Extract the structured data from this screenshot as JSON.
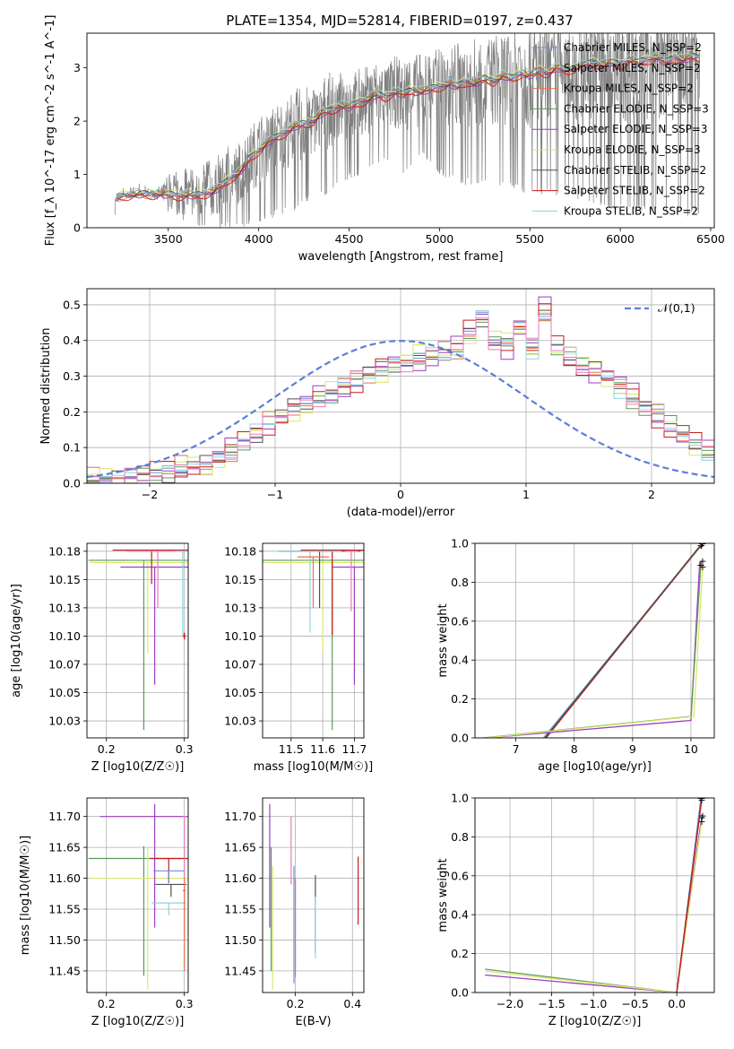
{
  "figure_title": "PLATE=1354, MJD=52814, FIBERID=0197, z=0.437",
  "chart_data": [
    {
      "id": "spectrum",
      "type": "line",
      "title": "PLATE=1354, MJD=52814, FIBERID=0197, z=0.437",
      "xlabel": "wavelength [Angstrom, rest frame]",
      "ylabel": "Flux [f_λ 10^-17 erg cm^-2 s^-1 A^-1]",
      "xlim": [
        3050,
        6520
      ],
      "ylim": [
        0,
        3.65
      ],
      "xticks": [
        3500,
        4000,
        4500,
        5000,
        5500,
        6000,
        6500
      ],
      "yticks": [
        0,
        1,
        2,
        3
      ],
      "data_envelope": {
        "wavelength": [
          3200,
          3250,
          3300,
          3350,
          3400,
          3500,
          3600,
          3700,
          3800,
          3900,
          4000,
          4100,
          4200,
          4300,
          4400,
          4500,
          4600,
          4700,
          4800,
          4900,
          5000,
          5100,
          5200,
          5300,
          5400,
          5500,
          5600,
          5700,
          5800,
          5900,
          6000,
          6100,
          6200,
          6300,
          6400
        ],
        "upper": [
          0.6,
          0.75,
          0.8,
          0.82,
          0.8,
          1.0,
          1.15,
          1.3,
          1.45,
          1.7,
          1.95,
          2.15,
          2.35,
          2.5,
          2.65,
          2.75,
          2.85,
          3.05,
          3.05,
          3.3,
          3.1,
          3.3,
          3.3,
          3.3,
          3.4,
          3.5,
          3.45,
          3.55,
          3.5,
          3.6,
          3.6,
          3.6,
          3.55,
          3.6,
          3.6
        ],
        "lower": [
          0.5,
          0.6,
          0.65,
          0.7,
          0.65,
          0.3,
          0.1,
          0.0,
          0.0,
          0.0,
          0.1,
          0.2,
          0.3,
          0.5,
          0.6,
          0.9,
          1.0,
          1.2,
          1.0,
          1.3,
          1.0,
          0.8,
          0.8,
          0.8,
          0.7,
          0.6,
          0.6,
          0.6,
          0.5,
          0.4,
          0.3,
          0.3,
          0.3,
          0.2,
          0.2
        ]
      },
      "model": {
        "wavelength": [
          3200,
          3210,
          3250,
          3300,
          3350,
          3400,
          3450,
          3500,
          3550,
          3600,
          3650,
          3700,
          3750,
          3800,
          3850,
          3900,
          3950,
          4000,
          4050,
          4100,
          4150,
          4200,
          4250,
          4300,
          4350,
          4400,
          4450,
          4500,
          4550,
          4600,
          4650,
          4700,
          4750,
          4800,
          4850,
          4900,
          4950,
          5000,
          5050,
          5100,
          5150,
          5200,
          5250,
          5300,
          5350,
          5400,
          5450,
          5500,
          5550,
          5600,
          5650,
          5700,
          5750,
          5800,
          5850,
          5900,
          5950,
          6000,
          6050,
          6100,
          6150,
          6200,
          6250,
          6300,
          6350,
          6400
        ],
        "flux": [
          0.0,
          0.55,
          0.6,
          0.62,
          0.63,
          0.62,
          0.64,
          0.62,
          0.6,
          0.62,
          0.6,
          0.64,
          0.68,
          0.8,
          0.95,
          1.05,
          1.3,
          1.45,
          1.6,
          1.7,
          1.8,
          1.9,
          1.95,
          2.0,
          2.15,
          2.2,
          2.3,
          2.25,
          2.35,
          2.4,
          2.5,
          2.45,
          2.55,
          2.5,
          2.6,
          2.55,
          2.6,
          2.65,
          2.7,
          2.65,
          2.75,
          2.7,
          2.8,
          2.75,
          2.85,
          2.8,
          2.9,
          2.85,
          2.95,
          2.9,
          3.0,
          2.95,
          3.0,
          3.05,
          3.1,
          3.05,
          3.1,
          3.05,
          3.15,
          3.1,
          3.15,
          3.2,
          3.1,
          3.2,
          3.15,
          3.2
        ]
      },
      "legend_position": "upper right",
      "series": [
        {
          "name": "Chabrier MILES, N_SSP=2",
          "color": "#6a8fd6",
          "offset": 0.0
        },
        {
          "name": "Salpeter MILES, N_SSP=2",
          "color": "#e8734a",
          "offset": 0.03
        },
        {
          "name": "Kroupa MILES, N_SSP=2",
          "color": "#e8734a",
          "offset": -0.03
        },
        {
          "name": "Chabrier ELODIE, N_SSP=3",
          "color": "#5b9a5b",
          "offset": 0.01
        },
        {
          "name": "Salpeter ELODIE, N_SSP=3",
          "color": "#9b3fbf",
          "offset": -0.02
        },
        {
          "name": "Kroupa ELODIE, N_SSP=3",
          "color": "#d9e86a",
          "offset": 0.05
        },
        {
          "name": "Chabrier STELIB, N_SSP=2",
          "color": "#505050",
          "offset": 0.02
        },
        {
          "name": "Salpeter STELIB, N_SSP=2",
          "color": "#c81a1a",
          "offset": -0.05
        },
        {
          "name": "Kroupa STELIB, N_SSP=2",
          "color": "#8ed4dc",
          "offset": 0.06
        }
      ]
    },
    {
      "id": "residuals",
      "type": "histogram",
      "xlabel": "(data-model)/error",
      "ylabel": "Normed distribution",
      "xlim": [
        -2.5,
        2.5
      ],
      "ylim": [
        0,
        0.545
      ],
      "xticks": [
        -2,
        -1,
        0,
        1,
        2
      ],
      "yticks": [
        0.0,
        0.1,
        0.2,
        0.3,
        0.4,
        0.5
      ],
      "grid": true,
      "bin_width": 0.1,
      "bin_start": -2.5,
      "reference_curve": {
        "name": "𝒩(0,1)",
        "color": "#5b7fd6",
        "style": "dashed"
      },
      "legend_position": "upper right",
      "histogram": [
        0.01,
        0.01,
        0.01,
        0.02,
        0.02,
        0.03,
        0.03,
        0.04,
        0.05,
        0.05,
        0.07,
        0.09,
        0.12,
        0.14,
        0.17,
        0.19,
        0.21,
        0.22,
        0.24,
        0.25,
        0.27,
        0.29,
        0.31,
        0.32,
        0.33,
        0.34,
        0.35,
        0.36,
        0.37,
        0.38,
        0.42,
        0.46,
        0.4,
        0.39,
        0.44,
        0.38,
        0.48,
        0.38,
        0.35,
        0.33,
        0.32,
        0.3,
        0.27,
        0.24,
        0.21,
        0.19,
        0.16,
        0.14,
        0.11,
        0.09
      ],
      "series": [
        {
          "color": "#6a8fd6",
          "shift": 0.0
        },
        {
          "color": "#e8734a",
          "shift": 0.02
        },
        {
          "color": "#5b9a5b",
          "shift": -0.015
        },
        {
          "color": "#9b3fbf",
          "shift": 0.025
        },
        {
          "color": "#d9e86a",
          "shift": -0.02
        },
        {
          "color": "#505050",
          "shift": 0.01
        },
        {
          "color": "#c81a1a",
          "shift": -0.025
        },
        {
          "color": "#8ed4dc",
          "shift": 0.015
        },
        {
          "color": "#e87ab8",
          "shift": -0.01
        }
      ]
    },
    {
      "id": "z_vs_age",
      "type": "scatter",
      "xlabel": "Z [log10(Z/Z☉)]",
      "ylabel": "age  [log10(age/yr)]",
      "xlim": [
        0.175,
        0.305
      ],
      "ylim": [
        10.01,
        10.182
      ],
      "xticks": [
        0.2,
        0.3
      ],
      "yticks": [
        10.025,
        10.05,
        10.075,
        10.1,
        10.125,
        10.15,
        10.175
      ],
      "grid": true,
      "points": [
        {
          "x": 0.248,
          "y": 10.167,
          "xerr": 0.071,
          "yerr": [
            0.15,
            0
          ],
          "color": "#5b9a5b"
        },
        {
          "x": 0.253,
          "y": 10.165,
          "xerr": 0.074,
          "yerr": [
            0.08,
            0
          ],
          "color": "#d9e86a"
        },
        {
          "x": 0.262,
          "y": 10.161,
          "xerr": 0.044,
          "yerr": [
            0.104,
            0
          ],
          "color": "#9b3fbf"
        },
        {
          "x": 0.258,
          "y": 10.176,
          "xerr": 0.05,
          "yerr": [
            0.03,
            0
          ],
          "color": "#c81a1a"
        },
        {
          "x": 0.266,
          "y": 10.175,
          "xerr": 0.04,
          "yerr": [
            0.05,
            0
          ],
          "color": "#e87ab8"
        },
        {
          "x": 0.298,
          "y": 10.175,
          "xerr": 0.01,
          "yerr": [
            0.075,
            0
          ],
          "color": "#8ed4dc"
        },
        {
          "x": 0.3,
          "y": 10.1,
          "xerr": 0.002,
          "yerr": [
            0.003,
            0.003
          ],
          "color": "#e8734a"
        },
        {
          "x": 0.3,
          "y": 10.1,
          "xerr": 0.002,
          "yerr": [
            0.003,
            0.003
          ],
          "color": "#c81a1a"
        }
      ]
    },
    {
      "id": "mass_vs_age",
      "type": "scatter",
      "xlabel": "mass [log10(M/M☉)]",
      "ylabel": "",
      "xlim": [
        11.41,
        11.73
      ],
      "ylim": [
        10.01,
        10.182
      ],
      "xticks": [
        11.5,
        11.6,
        11.7
      ],
      "yticks": [
        10.025,
        10.05,
        10.075,
        10.1,
        10.125,
        10.15,
        10.175
      ],
      "grid": true,
      "points": [
        {
          "x": 11.63,
          "y": 10.167,
          "xerr": 0.23,
          "yerr": [
            0.15,
            0
          ],
          "color": "#5b9a5b"
        },
        {
          "x": 11.6,
          "y": 10.165,
          "xerr": 0.19,
          "yerr": [
            0.08,
            0
          ],
          "color": "#d9e86a"
        },
        {
          "x": 11.7,
          "y": 10.161,
          "xerr": 0.07,
          "yerr": [
            0.104,
            0
          ],
          "color": "#9b3fbf"
        },
        {
          "x": 11.63,
          "y": 10.176,
          "xerr": 0.1,
          "yerr": [
            0.075,
            0
          ],
          "color": "#c81a1a"
        },
        {
          "x": 11.59,
          "y": 10.175,
          "xerr": 0.13,
          "yerr": [
            0.05,
            0
          ],
          "color": "#505050"
        },
        {
          "x": 11.56,
          "y": 10.175,
          "xerr": 0.1,
          "yerr": [
            0.072,
            0
          ],
          "color": "#8ed4dc"
        },
        {
          "x": 11.69,
          "y": 10.175,
          "xerr": 0.02,
          "yerr": [
            0.053,
            0
          ],
          "color": "#e87ab8"
        },
        {
          "x": 11.57,
          "y": 10.17,
          "xerr": 0.05,
          "yerr": [
            0.045,
            0
          ],
          "color": "#e8734a"
        }
      ]
    },
    {
      "id": "age_cumulative",
      "type": "line",
      "xlabel": "age  [log10(age/yr)]",
      "ylabel": "mass weight",
      "xlim": [
        6.3,
        10.4
      ],
      "ylim": [
        0,
        1.0
      ],
      "xticks": [
        7,
        8,
        9,
        10
      ],
      "yticks": [
        0.0,
        0.2,
        0.4,
        0.6,
        0.8,
        1.0
      ],
      "grid": true,
      "series": [
        {
          "color": "#8ed4dc",
          "x": [
            7.47,
            10.2
          ],
          "y": [
            0.0,
            1.0
          ]
        },
        {
          "color": "#6a8fd6",
          "x": [
            7.48,
            10.2
          ],
          "y": [
            0.0,
            1.0
          ]
        },
        {
          "color": "#5b9a5b",
          "x": [
            7.5,
            10.18
          ],
          "y": [
            0.0,
            0.99
          ]
        },
        {
          "color": "#c81a1a",
          "x": [
            7.52,
            10.17
          ],
          "y": [
            0.0,
            0.99
          ]
        },
        {
          "color": "#505050",
          "x": [
            7.5,
            10.19
          ],
          "y": [
            0.0,
            1.0
          ]
        },
        {
          "color": "#9b3fbf",
          "x": [
            6.5,
            10.0,
            10.15,
            10.2
          ],
          "y": [
            0.0,
            0.09,
            0.9,
            0.91
          ]
        },
        {
          "color": "#5b9a5b",
          "x": [
            6.45,
            10.0,
            10.17
          ],
          "y": [
            0.0,
            0.11,
            0.89
          ]
        },
        {
          "color": "#d9e86a",
          "x": [
            6.5,
            10.05,
            10.2
          ],
          "y": [
            0.0,
            0.11,
            0.88
          ]
        },
        {
          "color": "#e8734a",
          "x": [
            10.15,
            10.17
          ],
          "y": [
            0.87,
            0.89
          ]
        }
      ]
    },
    {
      "id": "z_vs_mass",
      "type": "scatter",
      "xlabel": "Z [log10(Z/Z☉)]",
      "ylabel": "mass [log10(M/M☉)]",
      "xlim": [
        0.175,
        0.305
      ],
      "ylim": [
        11.415,
        11.73
      ],
      "xticks": [
        0.2,
        0.3
      ],
      "yticks": [
        11.45,
        11.5,
        11.55,
        11.6,
        11.65,
        11.7
      ],
      "grid": true,
      "points": [
        {
          "x": 0.248,
          "y": 11.632,
          "xerr": 0.071,
          "yerr": [
            0.19,
            0.02
          ],
          "color": "#5b9a5b"
        },
        {
          "x": 0.253,
          "y": 11.6,
          "xerr": 0.074,
          "yerr": [
            0.18,
            0.05
          ],
          "color": "#d9e86a"
        },
        {
          "x": 0.262,
          "y": 11.7,
          "xerr": 0.07,
          "yerr": [
            0.18,
            0.02
          ],
          "color": "#9b3fbf"
        },
        {
          "x": 0.28,
          "y": 11.632,
          "xerr": 0.024,
          "yerr": [
            0.04,
            0
          ],
          "color": "#c81a1a"
        },
        {
          "x": 0.28,
          "y": 11.612,
          "xerr": 0.02,
          "yerr": [
            0.02,
            0
          ],
          "color": "#6a8fd6"
        },
        {
          "x": 0.283,
          "y": 11.59,
          "xerr": 0.02,
          "yerr": [
            0.02,
            0
          ],
          "color": "#505050"
        },
        {
          "x": 0.28,
          "y": 11.56,
          "xerr": 0.022,
          "yerr": [
            0.02,
            0
          ],
          "color": "#8ed4dc"
        },
        {
          "x": 0.3,
          "y": 11.7,
          "xerr": 0.002,
          "yerr": [
            0.2,
            0
          ],
          "color": "#e87ab8"
        },
        {
          "x": 0.3,
          "y": 11.58,
          "xerr": 0.002,
          "yerr": [
            0.13,
            0.02
          ],
          "color": "#e8734a"
        }
      ]
    },
    {
      "id": "ebv_vs_mass",
      "type": "scatter",
      "xlabel": "E(B-V)",
      "ylabel": "",
      "xlim": [
        0.085,
        0.44
      ],
      "ylim": [
        11.415,
        11.73
      ],
      "xticks": [
        0.2,
        0.4
      ],
      "yticks": [
        11.45,
        11.5,
        11.55,
        11.6,
        11.65,
        11.7
      ],
      "grid": true,
      "points": [
        {
          "x": 0.11,
          "y": 11.62,
          "yerr": [
            0.1,
            0.1
          ],
          "color": "#9b3fbf"
        },
        {
          "x": 0.115,
          "y": 11.55,
          "yerr": [
            0.1,
            0.1
          ],
          "color": "#5b9a5b"
        },
        {
          "x": 0.12,
          "y": 11.55,
          "yerr": [
            0.13,
            0.07
          ],
          "color": "#d9e86a"
        },
        {
          "x": 0.185,
          "y": 11.65,
          "yerr": [
            0.06,
            0.05
          ],
          "color": "#e87ab8"
        },
        {
          "x": 0.195,
          "y": 11.56,
          "yerr": [
            0.13,
            0.06
          ],
          "color": "#6a8fd6"
        },
        {
          "x": 0.2,
          "y": 11.55,
          "yerr": [
            0.11,
            0.05
          ],
          "color": "#e8734a"
        },
        {
          "x": 0.27,
          "y": 11.57,
          "yerr": [
            0.09,
            0.035
          ],
          "color": "#505050"
        },
        {
          "x": 0.27,
          "y": 11.52,
          "yerr": [
            0.05,
            0.05
          ],
          "color": "#8ed4dc"
        },
        {
          "x": 0.42,
          "y": 11.58,
          "yerr": [
            0.055,
            0.055
          ],
          "color": "#c81a1a"
        }
      ]
    },
    {
      "id": "z_cumulative",
      "type": "line",
      "xlabel": "Z [log10(Z/Z☉)]",
      "ylabel": "mass weight",
      "xlim": [
        -2.42,
        0.45
      ],
      "ylim": [
        0,
        1.0
      ],
      "xticks": [
        -2.0,
        -1.5,
        -1.0,
        -0.5,
        0.0
      ],
      "yticks": [
        0.0,
        0.2,
        0.4,
        0.6,
        0.8,
        1.0
      ],
      "grid": true,
      "series": [
        {
          "color": "#8ed4dc",
          "x": [
            0.0,
            0.3
          ],
          "y": [
            0.0,
            1.0
          ]
        },
        {
          "color": "#6a8fd6",
          "x": [
            0.0,
            0.29
          ],
          "y": [
            0.0,
            1.0
          ]
        },
        {
          "color": "#5b9a5b",
          "x": [
            -2.3,
            0.0,
            0.3
          ],
          "y": [
            0.12,
            0.0,
            0.9
          ]
        },
        {
          "color": "#9b3fbf",
          "x": [
            -2.3,
            0.0,
            0.3
          ],
          "y": [
            0.09,
            0.0,
            0.9
          ]
        },
        {
          "color": "#d9e86a",
          "x": [
            -2.3,
            0.0,
            0.3
          ],
          "y": [
            0.11,
            0.0,
            0.88
          ]
        },
        {
          "color": "#505050",
          "x": [
            0.0,
            0.3
          ],
          "y": [
            0.0,
            1.0
          ]
        },
        {
          "color": "#c81a1a",
          "x": [
            0.0,
            0.3
          ],
          "y": [
            0.0,
            0.99
          ]
        },
        {
          "color": "#e87ab8",
          "x": [
            0.29,
            0.31
          ],
          "y": [
            0.9,
            0.91
          ]
        }
      ]
    }
  ]
}
